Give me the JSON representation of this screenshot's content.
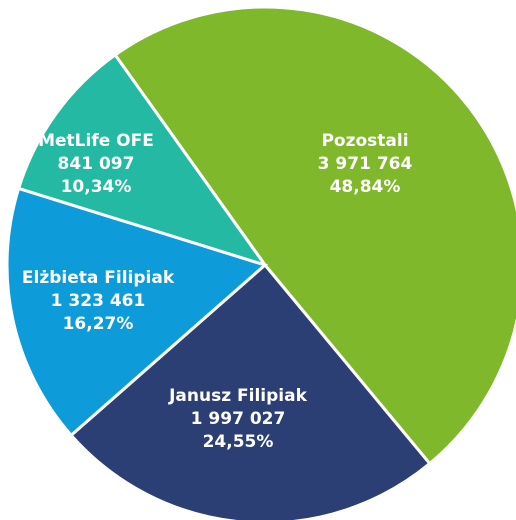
{
  "chart_data": {
    "type": "pie",
    "categories": [
      "Pozostali",
      "Janusz Filipiak",
      "Elżbieta Filipiak",
      "MetLife OFE"
    ],
    "values": [
      48.84,
      24.55,
      16.27,
      10.34
    ],
    "value_labels": [
      "48,84%",
      "24,55%",
      "16,27%",
      "10,34%"
    ],
    "counts": [
      3971764,
      1997027,
      1323461,
      841097
    ],
    "count_labels": [
      "3 971 764",
      "1 997 027",
      "1 323 461",
      "841 097"
    ],
    "colors": [
      "#7fb82a",
      "#2b3f74",
      "#0d9bd9",
      "#24b9a2"
    ]
  }
}
